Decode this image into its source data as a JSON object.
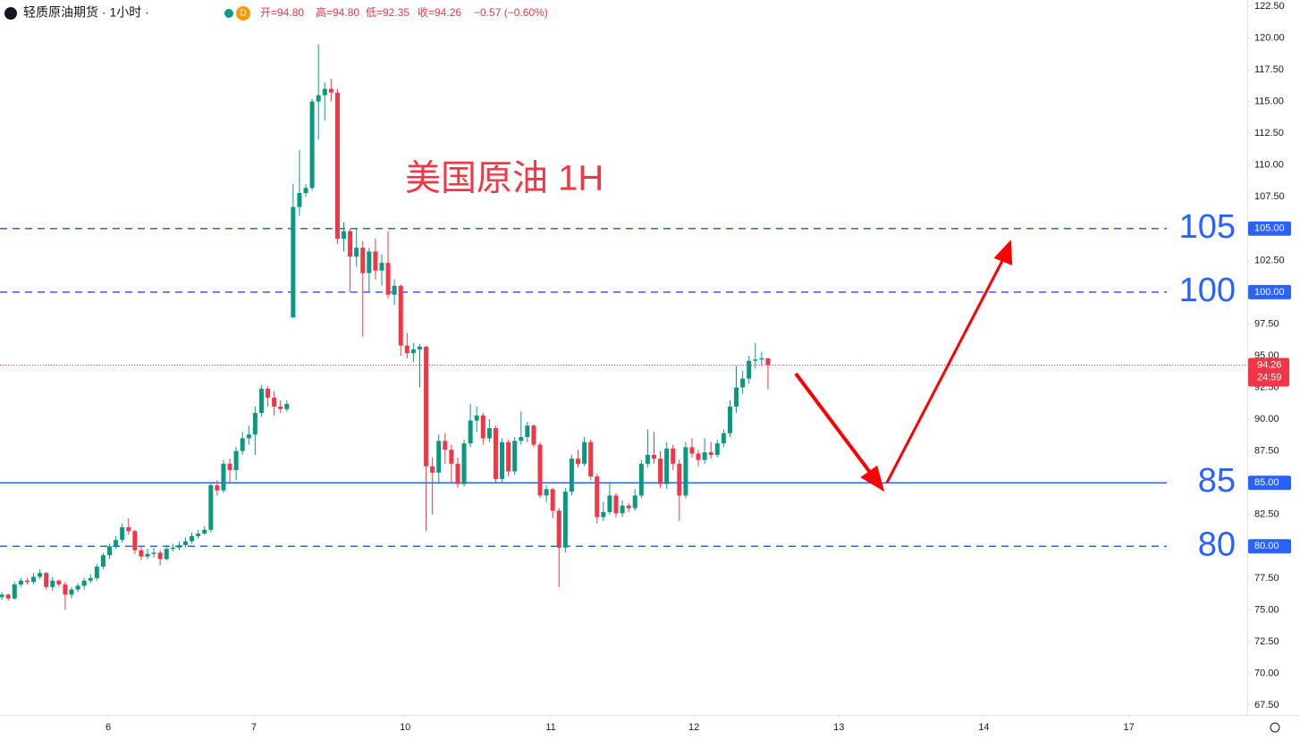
{
  "chart_data": {
    "type": "candlestick",
    "header": {
      "symbol": "轻质原油期货 · 1小时 ·",
      "badge": "D",
      "open": "开=94.80",
      "high": "高=94.80",
      "low": "低=92.35",
      "close": "收=94.26",
      "change": "−0.57 (−0.60%)"
    },
    "annotation": "美国原油 1H",
    "up_color": "#089981",
    "down_color": "#f23645",
    "level_color": "#2962ff",
    "ylim": [
      66.73,
      122.99
    ],
    "xlim": [
      -0.3,
      196.7
    ],
    "yticks": [
      {
        "value": 67.5,
        "label": "67.50"
      },
      {
        "value": 70,
        "label": "70.00"
      },
      {
        "value": 72.5,
        "label": "72.50"
      },
      {
        "value": 75,
        "label": "75.00"
      },
      {
        "value": 77.5,
        "label": "77.50"
      },
      {
        "value": 80,
        "label": "80.00"
      },
      {
        "value": 82.5,
        "label": "82.50"
      },
      {
        "value": 85,
        "label": "85.00"
      },
      {
        "value": 87.5,
        "label": "87.50"
      },
      {
        "value": 90,
        "label": "90.00"
      },
      {
        "value": 92.5,
        "label": "92.50"
      },
      {
        "value": 95,
        "label": "95.00"
      },
      {
        "value": 97.5,
        "label": "97.50"
      },
      {
        "value": 100,
        "label": "100.00"
      },
      {
        "value": 102.5,
        "label": "102.50"
      },
      {
        "value": 105,
        "label": "105.00"
      },
      {
        "value": 107.5,
        "label": "107.50"
      },
      {
        "value": 110,
        "label": "110.00"
      },
      {
        "value": 112.5,
        "label": "112.50"
      },
      {
        "value": 115,
        "label": "115.00"
      },
      {
        "value": 117.5,
        "label": "117.50"
      },
      {
        "value": 120,
        "label": "120.00"
      },
      {
        "value": 122.5,
        "label": "122.50"
      }
    ],
    "xticks": [
      {
        "value": 16.8,
        "label": "6"
      },
      {
        "value": 39.8,
        "label": "7"
      },
      {
        "value": 63.7,
        "label": "10"
      },
      {
        "value": 86.7,
        "label": "11"
      },
      {
        "value": 109.3,
        "label": "12"
      },
      {
        "value": 132.2,
        "label": "13"
      },
      {
        "value": 155.1,
        "label": "14"
      },
      {
        "value": 178,
        "label": "17"
      }
    ],
    "levels": [
      {
        "value": 105,
        "badge": "105.00",
        "style": "dashed"
      },
      {
        "value": 100,
        "badge": "100.00",
        "style": "dashed"
      },
      {
        "value": 85,
        "badge": "85.00",
        "style": "solid"
      },
      {
        "value": 80,
        "badge": "80.00",
        "style": "dashed"
      }
    ],
    "price_line": {
      "value": 94.26,
      "label": "94.26",
      "countdown": "24:59"
    },
    "candles": [
      [
        76.0,
        76.4,
        75.8,
        76.2
      ],
      [
        76.2,
        76.3,
        75.7,
        75.9
      ],
      [
        75.9,
        77.2,
        75.8,
        77.0
      ],
      [
        77.0,
        77.5,
        76.8,
        77.3
      ],
      [
        77.3,
        77.5,
        77.0,
        77.2
      ],
      [
        77.2,
        77.9,
        77.0,
        77.6
      ],
      [
        77.6,
        78.2,
        77.4,
        77.9
      ],
      [
        77.9,
        78.0,
        76.6,
        76.8
      ],
      [
        76.8,
        77.6,
        76.5,
        77.3
      ],
      [
        77.3,
        77.4,
        76.8,
        77.0
      ],
      [
        77.0,
        77.2,
        75.0,
        76.2
      ],
      [
        76.2,
        76.8,
        75.9,
        76.6
      ],
      [
        76.6,
        77.1,
        76.4,
        76.9
      ],
      [
        76.9,
        77.5,
        76.6,
        77.3
      ],
      [
        77.3,
        77.8,
        77.1,
        77.5
      ],
      [
        77.5,
        78.6,
        77.3,
        78.4
      ],
      [
        78.4,
        79.5,
        78.2,
        79.3
      ],
      [
        79.3,
        80.2,
        79.0,
        80.0
      ],
      [
        80.0,
        80.8,
        79.8,
        80.5
      ],
      [
        80.5,
        81.8,
        80.3,
        81.5
      ],
      [
        81.5,
        82.2,
        80.9,
        81.2
      ],
      [
        81.2,
        81.3,
        79.4,
        79.7
      ],
      [
        79.7,
        80.0,
        78.9,
        79.2
      ],
      [
        79.2,
        79.8,
        79.0,
        79.4
      ],
      [
        79.4,
        79.9,
        79.1,
        79.5
      ],
      [
        79.5,
        79.7,
        78.5,
        79.0
      ],
      [
        79.0,
        80.1,
        78.9,
        79.8
      ],
      [
        79.8,
        80.2,
        79.6,
        79.9
      ],
      [
        79.9,
        80.4,
        79.7,
        80.1
      ],
      [
        80.1,
        80.7,
        79.9,
        80.4
      ],
      [
        80.4,
        81.1,
        80.2,
        80.8
      ],
      [
        80.8,
        81.3,
        80.6,
        81.0
      ],
      [
        81.0,
        81.6,
        80.9,
        81.3
      ],
      [
        81.3,
        85.0,
        81.1,
        84.8
      ],
      [
        84.8,
        85.2,
        84.0,
        84.4
      ],
      [
        84.4,
        86.8,
        84.2,
        86.5
      ],
      [
        86.5,
        86.9,
        85.0,
        86.0
      ],
      [
        86.0,
        87.8,
        85.2,
        87.5
      ],
      [
        87.5,
        89.0,
        87.2,
        88.5
      ],
      [
        88.5,
        89.5,
        88.0,
        88.8
      ],
      [
        88.8,
        91.0,
        87.2,
        90.5
      ],
      [
        90.5,
        92.7,
        90.2,
        92.4
      ],
      [
        92.4,
        92.6,
        91.0,
        91.7
      ],
      [
        91.7,
        92.2,
        90.3,
        91.0
      ],
      [
        91.0,
        91.5,
        90.5,
        90.8
      ],
      [
        90.8,
        91.5,
        90.6,
        91.2
      ],
      [
        98.0,
        108.5,
        98.0,
        106.7
      ],
      [
        106.7,
        111.2,
        106.0,
        107.8
      ],
      [
        107.8,
        108.5,
        107.5,
        108.2
      ],
      [
        108.2,
        115.2,
        108.0,
        115.0
      ],
      [
        115.0,
        119.5,
        112.0,
        115.5
      ],
      [
        115.5,
        116.5,
        113.5,
        116.0
      ],
      [
        116.0,
        116.8,
        115.0,
        115.7
      ],
      [
        115.7,
        116.0,
        103.8,
        104.2
      ],
      [
        104.2,
        105.5,
        103.2,
        104.8
      ],
      [
        104.8,
        105.0,
        100.0,
        102.8
      ],
      [
        102.8,
        105.0,
        102.0,
        103.5
      ],
      [
        103.5,
        104.0,
        96.5,
        101.5
      ],
      [
        101.5,
        103.5,
        100.0,
        103.2
      ],
      [
        103.2,
        104.2,
        101.0,
        101.7
      ],
      [
        101.7,
        103.0,
        100.5,
        102.3
      ],
      [
        102.3,
        104.8,
        99.5,
        99.8
      ],
      [
        99.8,
        101.0,
        99.0,
        100.5
      ],
      [
        100.5,
        100.6,
        95.0,
        95.8
      ],
      [
        95.8,
        96.8,
        94.8,
        95.2
      ],
      [
        95.2,
        96.0,
        94.5,
        95.5
      ],
      [
        95.5,
        95.9,
        92.5,
        95.7
      ],
      [
        95.7,
        95.8,
        81.2,
        86.3
      ],
      [
        86.3,
        87.0,
        82.5,
        85.8
      ],
      [
        85.8,
        88.8,
        85.0,
        88.3
      ],
      [
        88.3,
        88.9,
        86.5,
        87.6
      ],
      [
        87.6,
        88.0,
        85.0,
        86.5
      ],
      [
        86.5,
        87.0,
        84.6,
        84.9
      ],
      [
        84.9,
        88.4,
        84.7,
        88.1
      ],
      [
        88.1,
        91.2,
        87.8,
        89.9
      ],
      [
        89.9,
        91.0,
        89.0,
        90.3
      ],
      [
        90.3,
        90.5,
        88.0,
        88.5
      ],
      [
        88.5,
        90.0,
        88.2,
        89.3
      ],
      [
        89.3,
        89.5,
        85.0,
        85.3
      ],
      [
        85.3,
        88.5,
        85.0,
        88.2
      ],
      [
        88.2,
        88.4,
        85.5,
        85.9
      ],
      [
        85.9,
        88.6,
        85.6,
        88.3
      ],
      [
        88.3,
        90.6,
        88.0,
        88.6
      ],
      [
        88.6,
        89.8,
        88.2,
        89.5
      ],
      [
        89.5,
        89.6,
        87.8,
        88.0
      ],
      [
        88.0,
        88.2,
        83.8,
        84.0
      ],
      [
        84.0,
        84.8,
        83.5,
        84.5
      ],
      [
        84.5,
        84.6,
        82.2,
        82.8
      ],
      [
        82.8,
        83.0,
        76.8,
        79.9
      ],
      [
        79.9,
        84.6,
        79.5,
        84.3
      ],
      [
        84.3,
        87.2,
        84.0,
        86.9
      ],
      [
        86.9,
        87.6,
        86.2,
        86.5
      ],
      [
        86.5,
        88.6,
        86.3,
        88.2
      ],
      [
        88.2,
        88.4,
        85.2,
        85.5
      ],
      [
        85.5,
        85.7,
        81.8,
        82.3
      ],
      [
        82.3,
        83.5,
        82.0,
        82.7
      ],
      [
        82.7,
        85.0,
        82.5,
        84.0
      ],
      [
        84.0,
        84.2,
        82.3,
        82.6
      ],
      [
        82.6,
        83.6,
        82.3,
        83.2
      ],
      [
        83.2,
        83.4,
        82.7,
        83.0
      ],
      [
        83.0,
        84.5,
        82.8,
        84.0
      ],
      [
        84.0,
        86.8,
        83.8,
        86.5
      ],
      [
        86.5,
        89.2,
        86.2,
        87.2
      ],
      [
        87.2,
        89.0,
        86.5,
        86.9
      ],
      [
        86.9,
        87.5,
        84.6,
        84.9
      ],
      [
        84.9,
        88.2,
        84.5,
        87.7
      ],
      [
        87.7,
        88.0,
        86.0,
        86.5
      ],
      [
        86.5,
        86.8,
        82.0,
        84.0
      ],
      [
        84.0,
        88.2,
        83.8,
        87.8
      ],
      [
        87.8,
        88.5,
        87.0,
        87.3
      ],
      [
        87.3,
        87.6,
        86.3,
        86.8
      ],
      [
        86.8,
        88.5,
        86.5,
        87.4
      ],
      [
        87.4,
        88.2,
        86.9,
        87.2
      ],
      [
        87.2,
        88.4,
        87.0,
        88.1
      ],
      [
        88.1,
        89.2,
        87.8,
        88.9
      ],
      [
        88.9,
        91.5,
        88.6,
        91.0
      ],
      [
        91.0,
        94.2,
        90.5,
        92.5
      ],
      [
        92.5,
        93.8,
        92.0,
        93.2
      ],
      [
        93.2,
        95.0,
        92.8,
        94.6
      ],
      [
        94.6,
        96.0,
        94.0,
        94.7
      ],
      [
        94.7,
        95.3,
        94.2,
        94.8
      ],
      [
        94.8,
        94.8,
        92.35,
        94.26
      ]
    ]
  }
}
